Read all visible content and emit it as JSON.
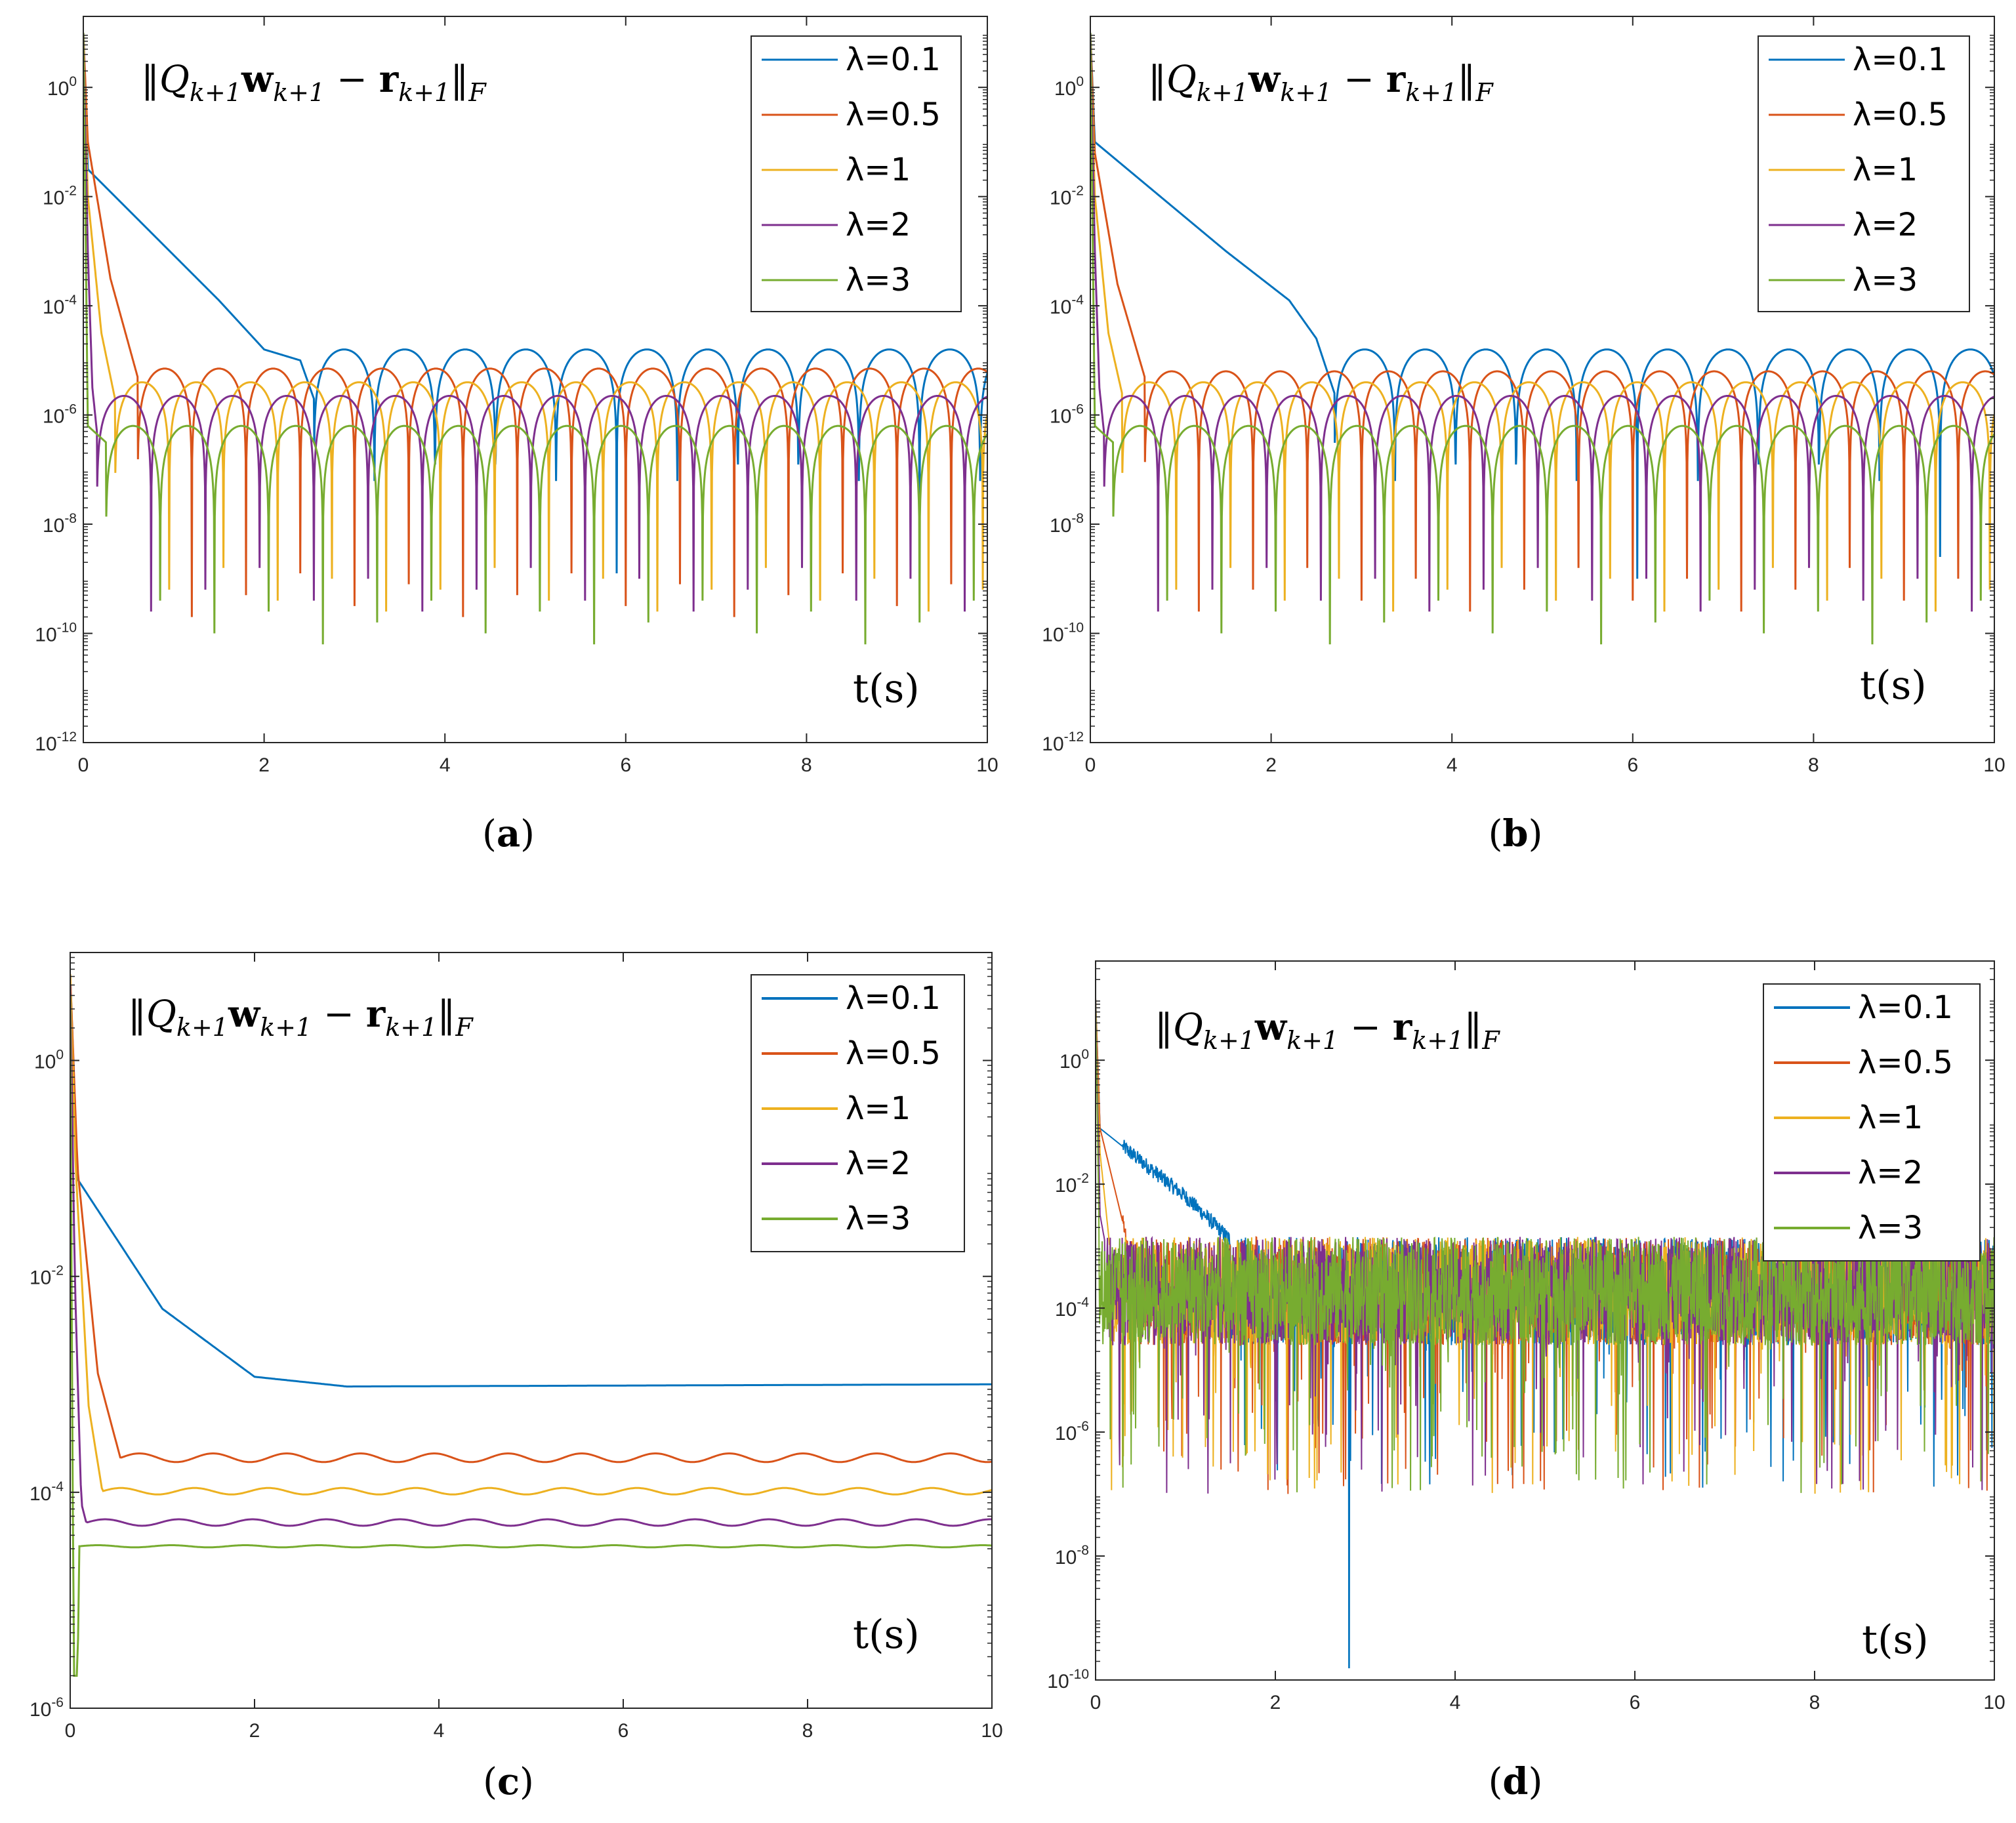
{
  "figure": {
    "formula_parts": {
      "norm_left": "‖",
      "Q": "Q",
      "sub1": "k+1",
      "w": "w",
      "sub2": "k+1",
      "minus": " − ",
      "r": "r",
      "sub3": "k+1",
      "norm_right": "‖",
      "subF": "F"
    },
    "xlabel": "t(s)"
  },
  "colors": {
    "lambda_0_1": "#0072BD",
    "lambda_0_5": "#D95319",
    "lambda_1": "#EDB120",
    "lambda_2": "#7E2F8E",
    "lambda_3": "#77AC30"
  },
  "chart_data": [
    {
      "panel": "(a)",
      "paren_open": "(",
      "letter": "a",
      "paren_close": ")",
      "type": "line",
      "yscale": "log",
      "xlim": [
        0,
        10
      ],
      "ylim_exp": [
        -12,
        1.3
      ],
      "xticks": [
        "0",
        "2",
        "4",
        "6",
        "8",
        "10"
      ],
      "yticks": [
        {
          "base": "10",
          "exp": "0"
        },
        {
          "base": "10",
          "exp": "-2"
        },
        {
          "base": "10",
          "exp": "-4"
        },
        {
          "base": "10",
          "exp": "-6"
        },
        {
          "base": "10",
          "exp": "-8"
        },
        {
          "base": "10",
          "exp": "-10"
        },
        {
          "base": "10",
          "exp": "-12"
        }
      ],
      "legend": [
        "λ=0.1",
        "λ=0.5",
        "λ=1",
        "λ=2",
        "λ=3"
      ],
      "legend_position": "top-right",
      "series": [
        {
          "name": "λ=0.1",
          "decay": [
            [
              0,
              1.0
            ],
            [
              0.05,
              -1.5
            ],
            [
              1.5,
              -3.9
            ],
            [
              2.0,
              -4.8
            ],
            [
              2.4,
              -5.0
            ],
            [
              2.55,
              -5.7
            ]
          ],
          "floor": -4.8,
          "period": 0.67,
          "phase": 2.55,
          "dip": -8.5
        },
        {
          "name": "λ=0.5",
          "decay": [
            [
              0,
              1.0
            ],
            [
              0.05,
              -1.0
            ],
            [
              0.3,
              -3.5
            ],
            [
              0.6,
              -5.3
            ]
          ],
          "floor": -5.15,
          "period": 0.6,
          "phase": 0.6,
          "dip": -8.9
        },
        {
          "name": "λ=1",
          "decay": [
            [
              0,
              1.0
            ],
            [
              0.05,
              -2.0
            ],
            [
              0.2,
              -4.5
            ],
            [
              0.35,
              -5.7
            ]
          ],
          "floor": -5.4,
          "period": 0.6,
          "phase": 0.35,
          "dip": -8.8
        },
        {
          "name": "λ=2",
          "decay": [
            [
              0,
              1.0
            ],
            [
              0.05,
              -3.0
            ],
            [
              0.1,
              -5.5
            ],
            [
              0.15,
              -6.3
            ]
          ],
          "floor": -5.65,
          "period": 0.6,
          "phase": 0.15,
          "dip": -8.8
        },
        {
          "name": "λ=3",
          "decay": [
            [
              0,
              1.0
            ],
            [
              0.05,
              -6.2
            ],
            [
              0.25,
              -6.5
            ]
          ],
          "floor": -6.2,
          "period": 0.6,
          "phase": 0.25,
          "dip": -9.4
        }
      ]
    },
    {
      "panel": "(b)",
      "paren_open": "(",
      "letter": "b",
      "paren_close": ")",
      "type": "line",
      "yscale": "log",
      "xlim": [
        0,
        10
      ],
      "ylim_exp": [
        -12,
        1.3
      ],
      "xticks": [
        "0",
        "2",
        "4",
        "6",
        "8",
        "10"
      ],
      "yticks": [
        {
          "base": "10",
          "exp": "0"
        },
        {
          "base": "10",
          "exp": "-2"
        },
        {
          "base": "10",
          "exp": "-4"
        },
        {
          "base": "10",
          "exp": "-6"
        },
        {
          "base": "10",
          "exp": "-8"
        },
        {
          "base": "10",
          "exp": "-10"
        },
        {
          "base": "10",
          "exp": "-12"
        }
      ],
      "legend": [
        "λ=0.1",
        "λ=0.5",
        "λ=1",
        "λ=2",
        "λ=3"
      ],
      "legend_position": "top-right",
      "series": [
        {
          "name": "λ=0.1",
          "decay": [
            [
              0,
              1.0
            ],
            [
              0.05,
              -1.0
            ],
            [
              1.5,
              -3.0
            ],
            [
              2.2,
              -3.9
            ],
            [
              2.5,
              -4.6
            ],
            [
              2.7,
              -5.6
            ]
          ],
          "floor": -4.8,
          "period": 0.67,
          "phase": 2.7,
          "dip": -8.2
        },
        {
          "name": "λ=0.5",
          "decay": [
            [
              0,
              1.0
            ],
            [
              0.05,
              -1.2
            ],
            [
              0.3,
              -3.6
            ],
            [
              0.6,
              -5.3
            ]
          ],
          "floor": -5.2,
          "period": 0.6,
          "phase": 0.6,
          "dip": -8.8
        },
        {
          "name": "λ=1",
          "decay": [
            [
              0,
              1.0
            ],
            [
              0.05,
              -2.0
            ],
            [
              0.2,
              -4.5
            ],
            [
              0.35,
              -5.6
            ]
          ],
          "floor": -5.4,
          "period": 0.6,
          "phase": 0.35,
          "dip": -8.8
        },
        {
          "name": "λ=2",
          "decay": [
            [
              0,
              1.0
            ],
            [
              0.05,
              -3.0
            ],
            [
              0.1,
              -5.5
            ],
            [
              0.15,
              -6.3
            ]
          ],
          "floor": -5.65,
          "period": 0.6,
          "phase": 0.15,
          "dip": -8.8
        },
        {
          "name": "λ=3",
          "decay": [
            [
              0,
              1.0
            ],
            [
              0.05,
              -6.2
            ],
            [
              0.25,
              -6.5
            ]
          ],
          "floor": -6.2,
          "period": 0.6,
          "phase": 0.25,
          "dip": -9.4
        }
      ]
    },
    {
      "panel": "(c)",
      "paren_open": "(",
      "letter": "c",
      "paren_close": ")",
      "type": "line",
      "yscale": "log",
      "xlim": [
        0,
        10
      ],
      "ylim_exp": [
        -6,
        1.0
      ],
      "xticks": [
        "0",
        "2",
        "4",
        "6",
        "8",
        "10"
      ],
      "yticks": [
        {
          "base": "10",
          "exp": "0"
        },
        {
          "base": "10",
          "exp": "-2"
        },
        {
          "base": "10",
          "exp": "-4"
        },
        {
          "base": "10",
          "exp": "-6"
        }
      ],
      "legend": [
        "λ=0.1",
        "λ=0.5",
        "λ=1",
        "λ=2",
        "λ=3"
      ],
      "legend_position": "top-right",
      "series": [
        {
          "name": "λ=0.1",
          "decay": [
            [
              0,
              0.8
            ],
            [
              0.08,
              -1.1
            ],
            [
              1.0,
              -2.3
            ],
            [
              2.0,
              -2.93
            ],
            [
              3.0,
              -3.02
            ],
            [
              10,
              -3.0
            ]
          ],
          "floor": -3.0,
          "ripple": 0.0
        },
        {
          "name": "λ=0.5",
          "decay": [
            [
              0,
              0.8
            ],
            [
              0.08,
              -1.0
            ],
            [
              0.3,
              -2.9
            ],
            [
              0.55,
              -3.7
            ]
          ],
          "floor": -3.68,
          "ripple": 0.04
        },
        {
          "name": "λ=1",
          "decay": [
            [
              0,
              0.8
            ],
            [
              0.06,
              -1.0
            ],
            [
              0.2,
              -3.2
            ],
            [
              0.35,
              -4.0
            ]
          ],
          "floor": -3.99,
          "ripple": 0.03
        },
        {
          "name": "λ=2",
          "decay": [
            [
              0,
              0.7
            ],
            [
              0.05,
              -2.0
            ],
            [
              0.12,
              -4.1
            ],
            [
              0.18,
              -4.3
            ]
          ],
          "floor": -4.28,
          "ripple": 0.03
        },
        {
          "name": "λ=3",
          "decay": [
            [
              0,
              0.6
            ],
            [
              0.02,
              -3.0
            ],
            [
              0.04,
              -5.7
            ],
            [
              0.08,
              -5.7
            ],
            [
              0.1,
              -4.5
            ]
          ],
          "floor": -4.5,
          "ripple": 0.01
        }
      ]
    },
    {
      "panel": "(d)",
      "paren_open": "(",
      "letter": "d",
      "paren_close": ")",
      "type": "line",
      "yscale": "log",
      "xlim": [
        0,
        10
      ],
      "ylim_exp": [
        -10,
        1.6
      ],
      "xticks": [
        "0",
        "2",
        "4",
        "6",
        "8",
        "10"
      ],
      "yticks": [
        {
          "base": "10",
          "exp": "0"
        },
        {
          "base": "10",
          "exp": "-2"
        },
        {
          "base": "10",
          "exp": "-4"
        },
        {
          "base": "10",
          "exp": "-6"
        },
        {
          "base": "10",
          "exp": "-8"
        },
        {
          "base": "10",
          "exp": "-10"
        }
      ],
      "legend": [
        "λ=0.1",
        "λ=0.5",
        "λ=1",
        "λ=2",
        "λ=3"
      ],
      "legend_position": "top-right",
      "noise": {
        "band_top": -2.85,
        "band_bottom": -4.6,
        "dip_min": -7.0
      },
      "series": [
        {
          "name": "λ=0.1",
          "decay": [
            [
              0,
              1.0
            ],
            [
              0.05,
              -1.1
            ],
            [
              1.0,
              -2.2
            ],
            [
              1.5,
              -2.9
            ]
          ],
          "deep_dip": [
            2.82,
            -9.8
          ]
        },
        {
          "name": "λ=0.5",
          "decay": [
            [
              0,
              1.0
            ],
            [
              0.05,
              -1.1
            ],
            [
              0.2,
              -2.0
            ],
            [
              0.35,
              -2.9
            ]
          ]
        },
        {
          "name": "λ=1",
          "decay": [
            [
              0,
              1.0
            ],
            [
              0.05,
              -1.5
            ],
            [
              0.15,
              -2.9
            ]
          ]
        },
        {
          "name": "λ=2",
          "decay": [
            [
              0,
              1.0
            ],
            [
              0.05,
              -2.5
            ],
            [
              0.1,
              -2.9
            ]
          ]
        },
        {
          "name": "λ=3",
          "decay": [
            [
              0,
              1.0
            ],
            [
              0.04,
              -2.9
            ]
          ]
        }
      ]
    }
  ]
}
